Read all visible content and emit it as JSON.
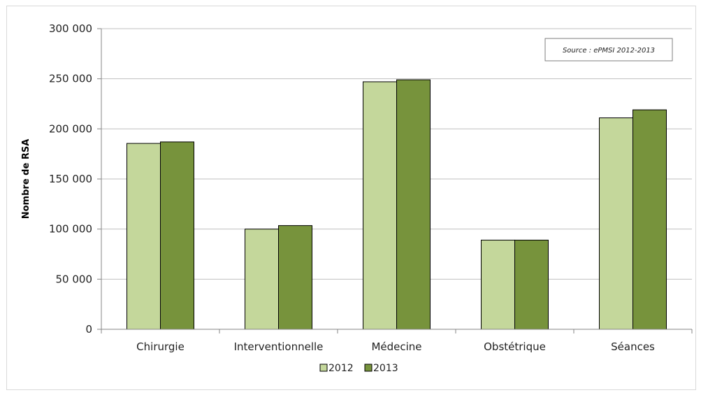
{
  "chart_data": {
    "type": "bar",
    "categories": [
      "Chirurgie",
      "Interventionnelle",
      "Médecine",
      "Obstétrique",
      "Séances"
    ],
    "series": [
      {
        "name": "2012",
        "color": "#c4d79b",
        "values": [
          185500,
          100000,
          247000,
          89000,
          211000
        ]
      },
      {
        "name": "2013",
        "color": "#77933c",
        "values": [
          187000,
          103500,
          249000,
          89000,
          219000
        ]
      }
    ],
    "ylabel": "Nombre de RSA",
    "ylim": [
      0,
      300000
    ],
    "yticks": [
      0,
      50000,
      100000,
      150000,
      200000,
      250000,
      300000
    ],
    "ytick_labels": [
      "0",
      "50 000",
      "100 000",
      "150 000",
      "200 000",
      "250 000",
      "300 000"
    ],
    "grid": true,
    "legend": "bottom-center",
    "annotation": "Source : ePMSI 2012-2013"
  }
}
